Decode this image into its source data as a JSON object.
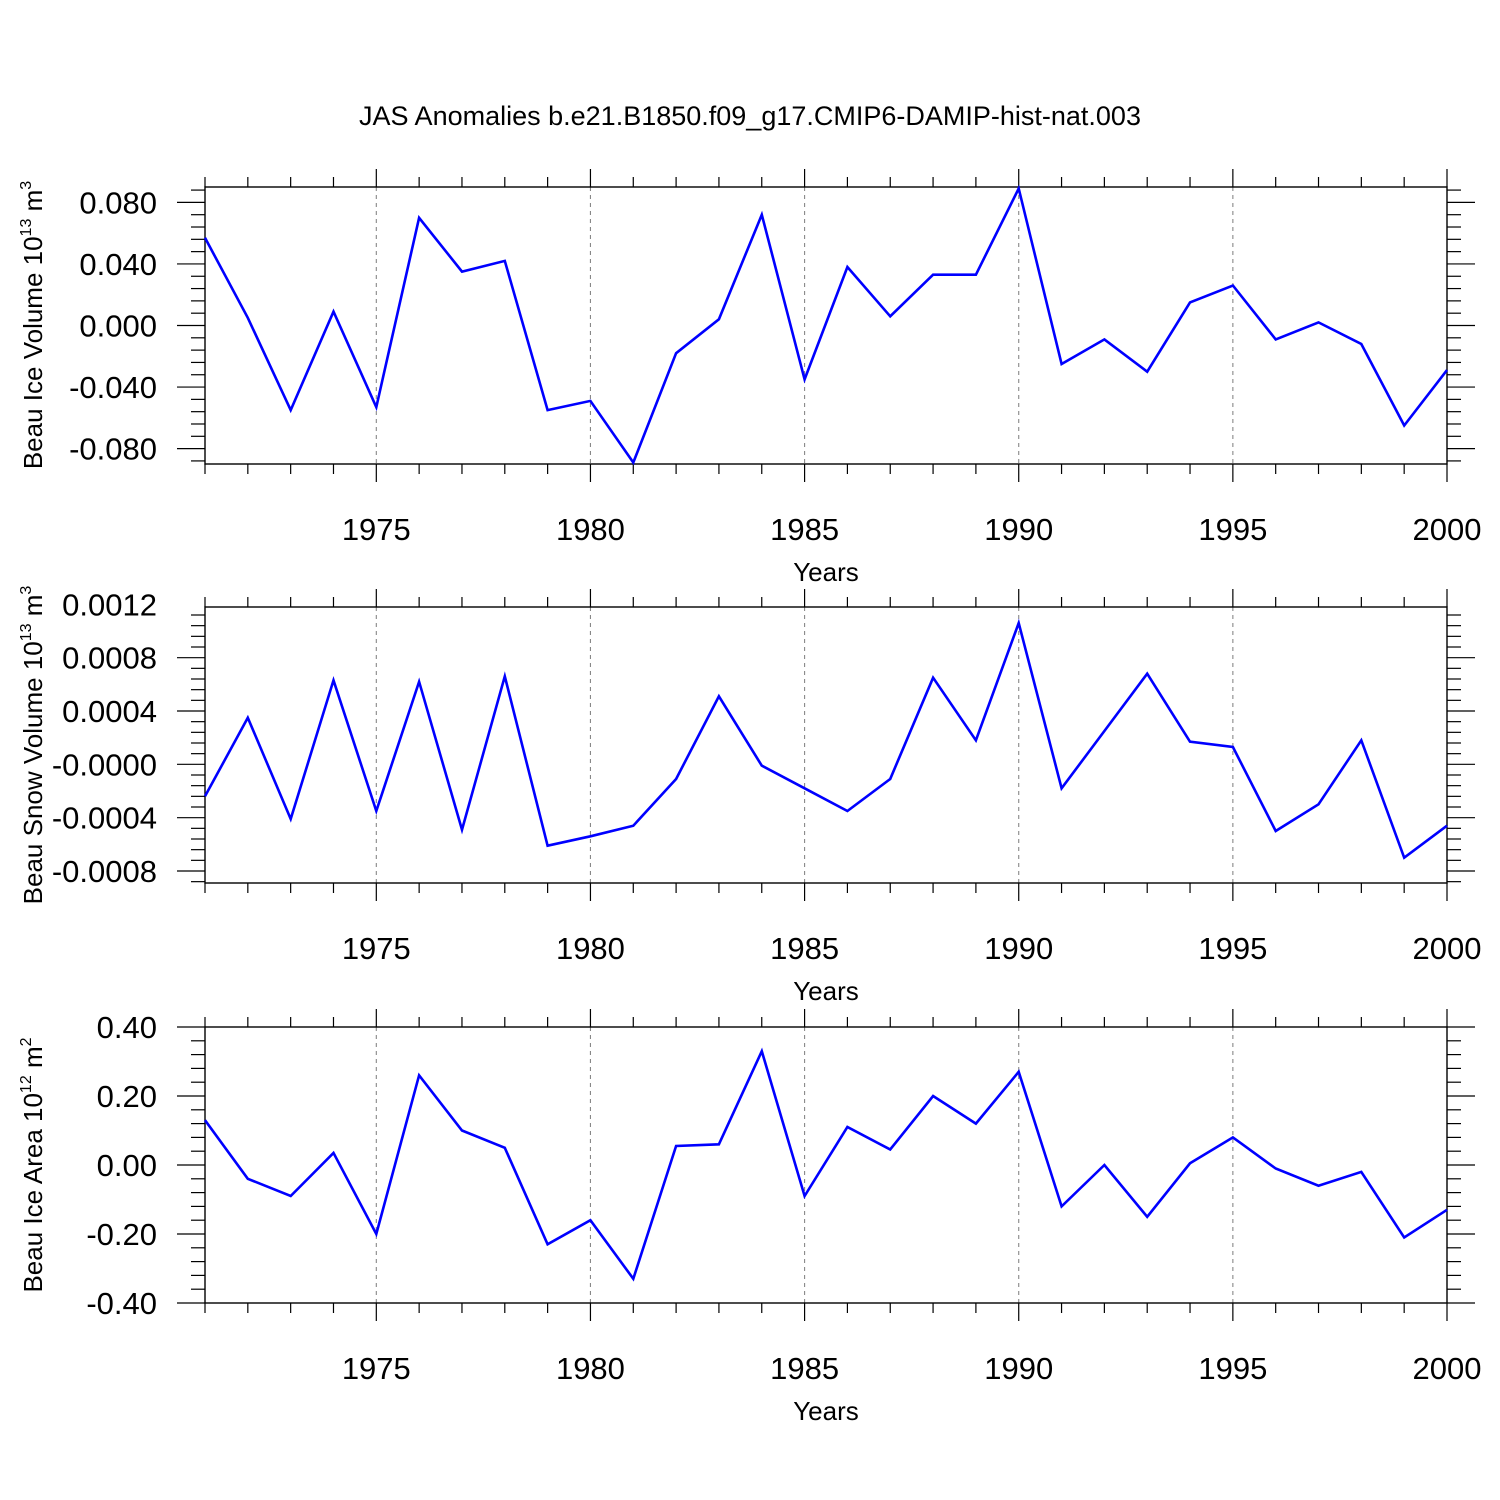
{
  "title": "JAS Anomalies b.e21.B1850.f09_g17.CMIP6-DAMIP-hist-nat.003",
  "chart_data": [
    {
      "type": "line",
      "xlabel": "Years",
      "ylabel": "Beau Ice Volume 10",
      "ylabel_exp": "13",
      "ylabel_unit": " m",
      "ylabel_unit_exp": "3",
      "xlim": [
        1971,
        2000
      ],
      "ylim": [
        -0.09,
        0.09
      ],
      "xticks": [
        1975,
        1980,
        1985,
        1990,
        1995,
        2000
      ],
      "xtick_labels": [
        "1975",
        "1980",
        "1985",
        "1990",
        "1995",
        "2000"
      ],
      "yticks": [
        -0.08,
        -0.04,
        0.0,
        0.04,
        0.08
      ],
      "ytick_labels": [
        "-0.080",
        "-0.040",
        "0.000",
        "0.040",
        "0.080"
      ],
      "grid": "vertical dashed at major ticks",
      "color": "#0000ff",
      "x": [
        1971,
        1972,
        1973,
        1974,
        1975,
        1976,
        1977,
        1978,
        1979,
        1980,
        1981,
        1982,
        1983,
        1984,
        1985,
        1986,
        1987,
        1988,
        1989,
        1990,
        1991,
        1992,
        1993,
        1994,
        1995,
        1996,
        1997,
        1998,
        1999,
        2000
      ],
      "values": [
        0.057,
        0.005,
        -0.055,
        0.009,
        -0.053,
        0.07,
        0.035,
        0.042,
        -0.055,
        -0.049,
        -0.089,
        -0.018,
        0.004,
        0.072,
        -0.035,
        0.038,
        0.006,
        0.033,
        0.033,
        0.089,
        -0.025,
        -0.009,
        -0.03,
        0.015,
        0.026,
        -0.009,
        0.002,
        -0.012,
        -0.065,
        -0.029
      ]
    },
    {
      "type": "line",
      "xlabel": "Years",
      "ylabel": "Beau Snow Volume 10",
      "ylabel_exp": "13",
      "ylabel_unit": " m",
      "ylabel_unit_exp": "3",
      "xlim": [
        1971,
        2000
      ],
      "ylim": [
        -0.00089,
        0.00118
      ],
      "xticks": [
        1975,
        1980,
        1985,
        1990,
        1995,
        2000
      ],
      "xtick_labels": [
        "1975",
        "1980",
        "1985",
        "1990",
        "1995",
        "2000"
      ],
      "yticks": [
        -0.0008,
        -0.0004,
        0.0,
        0.0004,
        0.0008,
        0.0012
      ],
      "ytick_labels": [
        "-0.0008",
        "-0.0004",
        "-0.0000",
        "0.0004",
        "0.0008",
        "0.0012"
      ],
      "grid": "vertical dashed at major ticks",
      "color": "#0000ff",
      "x": [
        1971,
        1972,
        1973,
        1974,
        1975,
        1976,
        1977,
        1978,
        1979,
        1980,
        1981,
        1982,
        1983,
        1984,
        1985,
        1986,
        1987,
        1988,
        1989,
        1990,
        1991,
        1992,
        1993,
        1994,
        1995,
        1996,
        1997,
        1998,
        1999,
        2000
      ],
      "values": [
        -0.00024,
        0.00035,
        -0.00041,
        0.00063,
        -0.00035,
        0.00062,
        -0.00049,
        0.00066,
        -0.00061,
        -0.00054,
        -0.00046,
        -0.00011,
        0.00051,
        -1e-05,
        -0.00018,
        -0.00035,
        -0.00011,
        0.00065,
        0.00018,
        0.00106,
        -0.00018,
        0.00025,
        0.00068,
        0.00017,
        0.00013,
        -0.0005,
        -0.0003,
        0.00018,
        -0.0007,
        -0.00046
      ]
    },
    {
      "type": "line",
      "xlabel": "Years",
      "ylabel": "Beau Ice Area 10",
      "ylabel_exp": "12",
      "ylabel_unit": " m",
      "ylabel_unit_exp": "2",
      "xlim": [
        1971,
        2000
      ],
      "ylim": [
        -0.4,
        0.4
      ],
      "xticks": [
        1975,
        1980,
        1985,
        1990,
        1995,
        2000
      ],
      "xtick_labels": [
        "1975",
        "1980",
        "1985",
        "1990",
        "1995",
        "2000"
      ],
      "yticks": [
        -0.4,
        -0.2,
        0.0,
        0.2,
        0.4
      ],
      "ytick_labels": [
        "-0.40",
        "-0.20",
        "0.00",
        "0.20",
        "0.40"
      ],
      "grid": "vertical dashed at major ticks",
      "color": "#0000ff",
      "x": [
        1971,
        1972,
        1973,
        1974,
        1975,
        1976,
        1977,
        1978,
        1979,
        1980,
        1981,
        1982,
        1983,
        1984,
        1985,
        1986,
        1987,
        1988,
        1989,
        1990,
        1991,
        1992,
        1993,
        1994,
        1995,
        1996,
        1997,
        1998,
        1999,
        2000
      ],
      "values": [
        0.13,
        -0.04,
        -0.09,
        0.035,
        -0.2,
        0.26,
        0.1,
        0.05,
        -0.23,
        -0.16,
        -0.33,
        0.055,
        0.06,
        0.33,
        -0.09,
        0.11,
        0.045,
        0.2,
        0.12,
        0.27,
        -0.12,
        0.0,
        -0.15,
        0.005,
        0.08,
        -0.01,
        -0.06,
        -0.02,
        -0.21,
        -0.13
      ]
    }
  ]
}
